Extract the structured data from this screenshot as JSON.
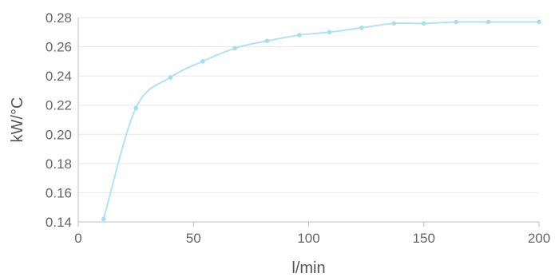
{
  "chart_data": {
    "type": "line",
    "title": "",
    "xlabel": "l/min",
    "ylabel": "kW/°C",
    "xlim": [
      0,
      200
    ],
    "ylim": [
      0.14,
      0.28
    ],
    "x_ticks": [
      0,
      50,
      100,
      150,
      200
    ],
    "y_ticks": [
      0.14,
      0.16,
      0.18,
      0.2,
      0.22,
      0.24,
      0.26,
      0.28
    ],
    "x_tick_labels": [
      "0",
      "50",
      "100",
      "150",
      "200"
    ],
    "y_tick_labels": [
      "0.14",
      "0.16",
      "0.18",
      "0.20",
      "0.22",
      "0.24",
      "0.26",
      "0.28"
    ],
    "grid": true,
    "legend": "none",
    "colors": {
      "line": "#b3e1f6",
      "marker": "#a9dcf3",
      "grid": "#e8e8e8",
      "axis": "#bfbfbf"
    },
    "series": [
      {
        "x": [
          11,
          25,
          40,
          54,
          68,
          82,
          96,
          109,
          123,
          137,
          150,
          164,
          178,
          200
        ],
        "y": [
          0.142,
          0.218,
          0.239,
          0.25,
          0.259,
          0.264,
          0.268,
          0.27,
          0.273,
          0.276,
          0.276,
          0.277,
          0.277,
          0.277
        ]
      }
    ]
  }
}
